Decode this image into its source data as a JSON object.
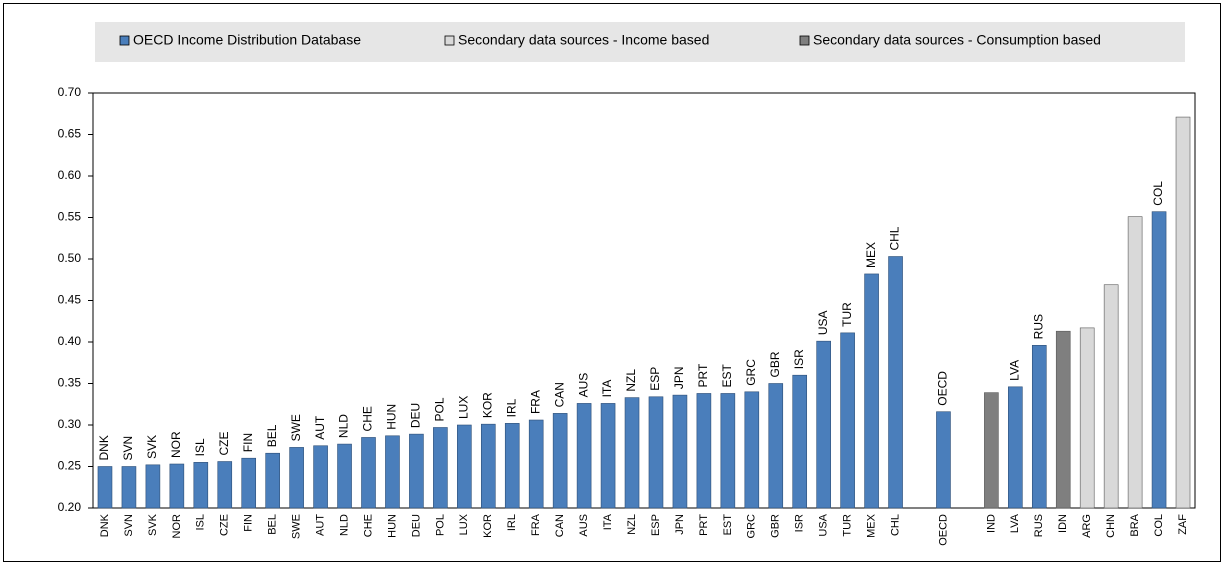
{
  "chart_data": {
    "type": "bar",
    "categories": [
      "DNK",
      "SVN",
      "SVK",
      "NOR",
      "ISL",
      "CZE",
      "FIN",
      "BEL",
      "SWE",
      "AUT",
      "NLD",
      "CHE",
      "HUN",
      "DEU",
      "POL",
      "LUX",
      "KOR",
      "IRL",
      "FRA",
      "CAN",
      "AUS",
      "ITA",
      "NZL",
      "ESP",
      "JPN",
      "PRT",
      "EST",
      "GRC",
      "GBR",
      "ISR",
      "USA",
      "TUR",
      "MEX",
      "CHL",
      null,
      "OECD",
      null,
      "IND",
      "LVA",
      "RUS",
      "IDN",
      "ARG",
      "CHN",
      "BRA",
      "COL",
      "ZAF"
    ],
    "series": [
      {
        "name": "OECD Income Distribution Database",
        "color": "#4a7ebb",
        "values": [
          0.25,
          0.25,
          0.252,
          0.253,
          0.255,
          0.256,
          0.26,
          0.266,
          0.273,
          0.275,
          0.277,
          0.285,
          0.287,
          0.289,
          0.297,
          0.3,
          0.301,
          0.302,
          0.306,
          0.314,
          0.326,
          0.326,
          0.333,
          0.334,
          0.336,
          0.338,
          0.338,
          0.34,
          0.35,
          0.36,
          0.401,
          0.411,
          0.482,
          0.503,
          null,
          0.316,
          null,
          null,
          0.346,
          0.396,
          null,
          null,
          null,
          null,
          0.557,
          null
        ]
      },
      {
        "name": "Secondary data sources - Income based",
        "color": "#d9d9d9",
        "values": [
          null,
          null,
          null,
          null,
          null,
          null,
          null,
          null,
          null,
          null,
          null,
          null,
          null,
          null,
          null,
          null,
          null,
          null,
          null,
          null,
          null,
          null,
          null,
          null,
          null,
          null,
          null,
          null,
          null,
          null,
          null,
          null,
          null,
          null,
          null,
          null,
          null,
          null,
          null,
          null,
          null,
          0.417,
          0.469,
          0.551,
          null,
          0.671
        ]
      },
      {
        "name": "Secondary data sources - Consumption based",
        "color": "#7f7f7f",
        "values": [
          null,
          null,
          null,
          null,
          null,
          null,
          null,
          null,
          null,
          null,
          null,
          null,
          null,
          null,
          null,
          null,
          null,
          null,
          null,
          null,
          null,
          null,
          null,
          null,
          null,
          null,
          null,
          null,
          null,
          null,
          null,
          null,
          null,
          null,
          null,
          null,
          null,
          0.339,
          null,
          null,
          0.413,
          null,
          null,
          null,
          null,
          null
        ]
      }
    ],
    "ylim": [
      0.2,
      0.7
    ],
    "yticks": [
      {
        "value": 0.2,
        "label": "0.20"
      },
      {
        "value": 0.25,
        "label": "0.25"
      },
      {
        "value": 0.3,
        "label": "0.30"
      },
      {
        "value": 0.35,
        "label": "0.35"
      },
      {
        "value": 0.4,
        "label": "0.40"
      },
      {
        "value": 0.45,
        "label": "0.45"
      },
      {
        "value": 0.5,
        "label": "0.50"
      },
      {
        "value": 0.55,
        "label": "0.55"
      },
      {
        "value": 0.6,
        "label": "0.60"
      },
      {
        "value": 0.65,
        "label": "0.65"
      },
      {
        "value": 0.7,
        "label": "0.70"
      }
    ],
    "grid": false,
    "legend": "top"
  }
}
